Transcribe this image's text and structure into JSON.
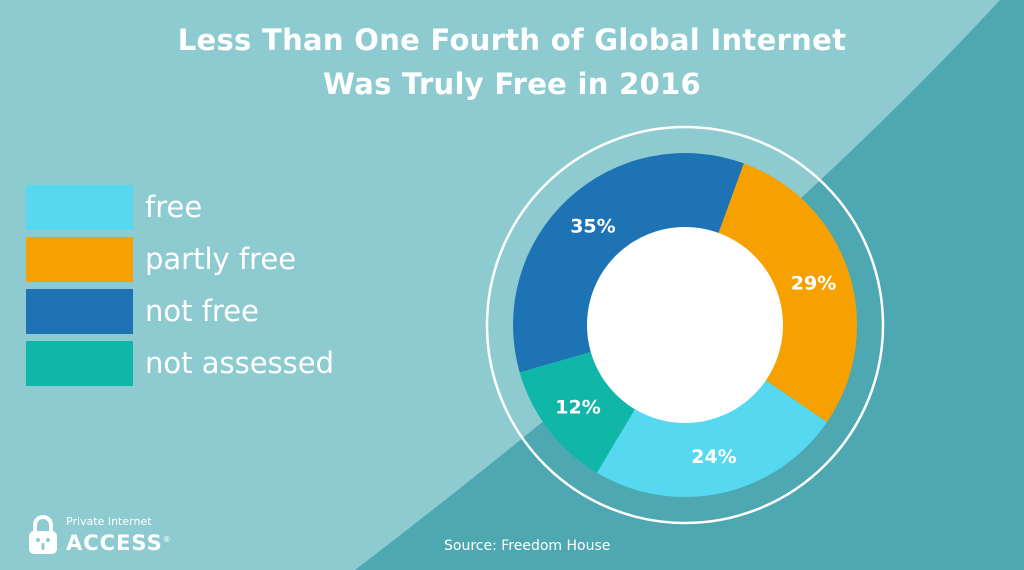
{
  "title_lines": [
    "Less Than One Fourth of Global Internet",
    "Was Truly Free in 2016"
  ],
  "source": "Source: Freedom House",
  "logo": {
    "line1": "Private Internet",
    "line2": "ACCESS",
    "mark": "®"
  },
  "colors": {
    "background": "#8dcbd0",
    "background_dark": "#4ea8b1",
    "free": "#55d8f0",
    "partly_free": "#f7a100",
    "not_free": "#1e73b4",
    "not_assessed": "#10b7a8",
    "center": "#ffffff"
  },
  "chart_data": {
    "type": "pie",
    "style": "donut",
    "title": "Less Than One Fourth of Global Internet Was Truly Free in 2016",
    "categories": [
      "free",
      "partly free",
      "not free",
      "not assessed"
    ],
    "values": [
      24,
      29,
      35,
      12
    ],
    "value_labels": [
      "24%",
      "29%",
      "35%",
      "12%"
    ],
    "legend_position": "left",
    "colors": [
      "#55d8f0",
      "#f7a100",
      "#1e73b4",
      "#10b7a8"
    ]
  }
}
